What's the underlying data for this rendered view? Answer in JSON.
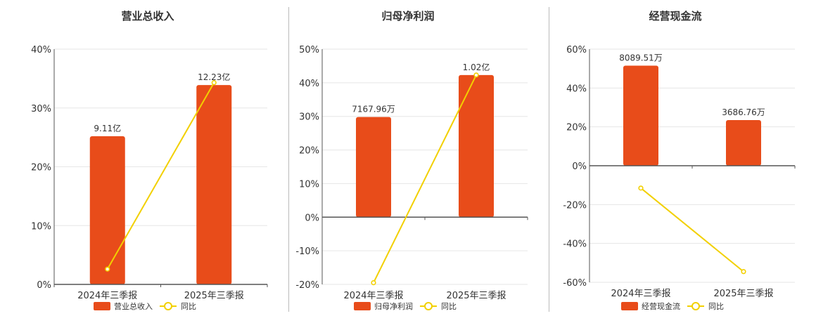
{
  "colors": {
    "bar": "#e84c1a",
    "line": "#f2d000",
    "axis": "#555555",
    "grid": "#e6e6e6",
    "text": "#333333"
  },
  "line_label": "同比",
  "chart_data": [
    {
      "type": "bar",
      "title": "营业总收入",
      "categories": [
        "2024年三季报",
        "2025年三季报"
      ],
      "bar_values": [
        25.2,
        33.9
      ],
      "bar_labels": [
        "9.11亿",
        "12.23亿"
      ],
      "line_values": [
        2.6,
        34.3
      ],
      "ylim": [
        0,
        40
      ],
      "yticks": [
        0,
        10,
        20,
        30,
        40
      ],
      "ytick_labels": [
        "0%",
        "10%",
        "20%",
        "30%",
        "40%"
      ],
      "legend": [
        "营业总收入",
        "同比"
      ]
    },
    {
      "type": "bar",
      "title": "归母净利润",
      "categories": [
        "2024年三季报",
        "2025年三季报"
      ],
      "bar_values": [
        29.8,
        42.3
      ],
      "bar_labels": [
        "7167.96万",
        "1.02亿"
      ],
      "line_values": [
        -19.5,
        42.3
      ],
      "ylim": [
        -20,
        50
      ],
      "yticks": [
        -20,
        -10,
        0,
        10,
        20,
        30,
        40,
        50
      ],
      "ytick_labels": [
        "-20%",
        "-10%",
        "0%",
        "10%",
        "20%",
        "30%",
        "40%",
        "50%"
      ],
      "legend": [
        "归母净利润",
        "同比"
      ]
    },
    {
      "type": "bar",
      "title": "经营现金流",
      "categories": [
        "2024年三季报",
        "2025年三季报"
      ],
      "bar_values": [
        51.5,
        23.5
      ],
      "bar_labels": [
        "8089.51万",
        "3686.76万"
      ],
      "line_values": [
        -11.5,
        -54.5
      ],
      "ylim": [
        -60,
        60
      ],
      "yticks": [
        -60,
        -40,
        -20,
        0,
        20,
        40,
        60
      ],
      "ytick_labels": [
        "-60%",
        "-40%",
        "-20%",
        "0%",
        "20%",
        "40%",
        "60%"
      ],
      "legend": [
        "经营现金流",
        "同比"
      ]
    }
  ]
}
